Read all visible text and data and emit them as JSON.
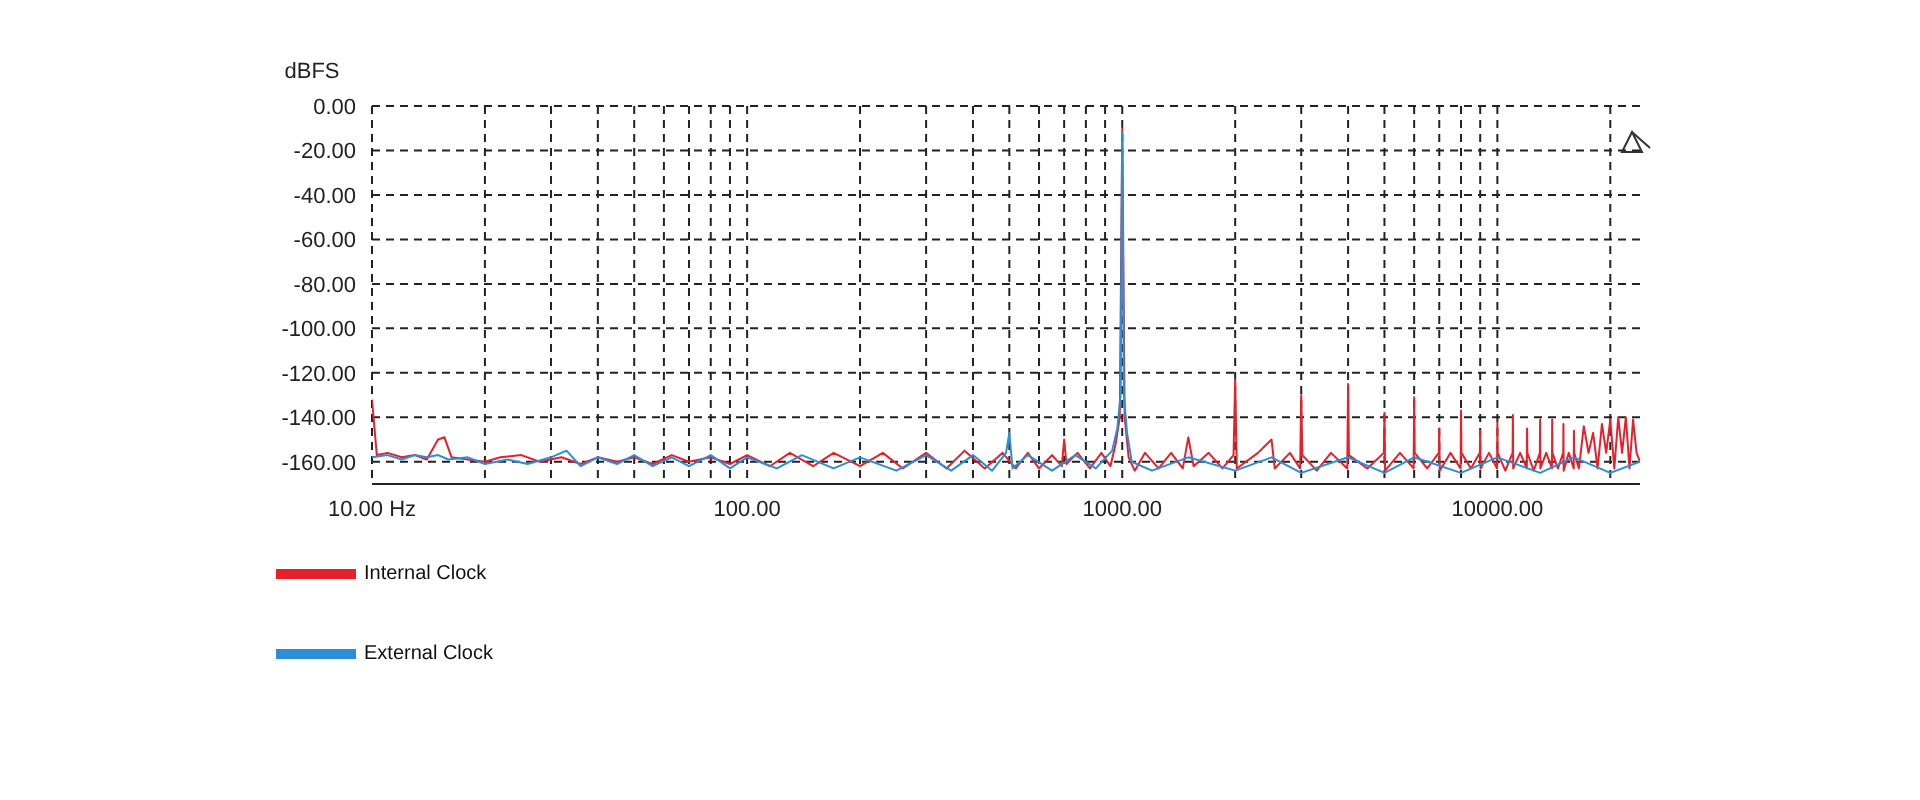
{
  "chart_data": {
    "type": "line",
    "ylabel": "dBFS",
    "log": "x",
    "grid": true,
    "line_style": "solid",
    "marker": "none",
    "legend": "bottom left",
    "xlim": [
      10,
      24000
    ],
    "xticks": [
      {
        "value": 10,
        "label": "10.00 Hz"
      },
      {
        "value": 20,
        "label": null
      },
      {
        "value": 30,
        "label": null
      },
      {
        "value": 40,
        "label": null
      },
      {
        "value": 50,
        "label": null
      },
      {
        "value": 60,
        "label": null
      },
      {
        "value": 70,
        "label": null
      },
      {
        "value": 80,
        "label": null
      },
      {
        "value": 90,
        "label": null
      },
      {
        "value": 100,
        "label": "100.00"
      },
      {
        "value": 200,
        "label": null
      },
      {
        "value": 300,
        "label": null
      },
      {
        "value": 400,
        "label": null
      },
      {
        "value": 500,
        "label": null
      },
      {
        "value": 600,
        "label": null
      },
      {
        "value": 700,
        "label": null
      },
      {
        "value": 800,
        "label": null
      },
      {
        "value": 900,
        "label": null
      },
      {
        "value": 1000,
        "label": "1000.00"
      },
      {
        "value": 2000,
        "label": null
      },
      {
        "value": 3000,
        "label": null
      },
      {
        "value": 4000,
        "label": null
      },
      {
        "value": 5000,
        "label": null
      },
      {
        "value": 6000,
        "label": null
      },
      {
        "value": 7000,
        "label": null
      },
      {
        "value": 8000,
        "label": null
      },
      {
        "value": 9000,
        "label": null
      },
      {
        "value": 10000,
        "label": "10000.00"
      },
      {
        "value": 20000,
        "label": null
      }
    ],
    "ylim": [
      -170,
      0
    ],
    "yticks": [
      {
        "value": 0,
        "label": "0.00"
      },
      {
        "value": -20,
        "label": "-20.00"
      },
      {
        "value": -40,
        "label": "-40.00"
      },
      {
        "value": -60,
        "label": "-60.00"
      },
      {
        "value": -80,
        "label": "-80.00"
      },
      {
        "value": -100,
        "label": "-100.00"
      },
      {
        "value": -120,
        "label": "-120.00"
      },
      {
        "value": -140,
        "label": "-140.00"
      },
      {
        "value": -160,
        "label": "-160.00"
      }
    ],
    "series": [
      {
        "name": "Internal Clock",
        "color": "#e8202a",
        "x": [
          10,
          10.3,
          11,
          12,
          13,
          14,
          15,
          15.6,
          16.3,
          18,
          20,
          22,
          25,
          28,
          32,
          36,
          40,
          45,
          50,
          56,
          63,
          70,
          80,
          90,
          100,
          115,
          130,
          150,
          170,
          200,
          230,
          260,
          300,
          340,
          380,
          430,
          480,
          520,
          560,
          600,
          650,
          690,
          700,
          710,
          760,
          820,
          880,
          930,
          960,
          985,
          1000,
          1015,
          1040,
          1080,
          1150,
          1250,
          1350,
          1450,
          1500,
          1550,
          1700,
          1850,
          1980,
          2000,
          2020,
          2300,
          2500,
          2550,
          2800,
          2980,
          3000,
          3020,
          3300,
          3600,
          3980,
          4000,
          4020,
          4500,
          4980,
          5000,
          5020,
          5500,
          5980,
          6000,
          6020,
          6500,
          6980,
          7000,
          7020,
          7500,
          7980,
          8000,
          8020,
          8500,
          8980,
          9000,
          9020,
          9500,
          9980,
          10000,
          10020,
          10500,
          10980,
          11000,
          11020,
          11500,
          11980,
          12000,
          12020,
          12500,
          12980,
          13000,
          13020,
          13500,
          13980,
          14000,
          14020,
          14500,
          14980,
          15000,
          15020,
          15500,
          15980,
          16000,
          16020,
          16500,
          17000,
          17500,
          18000,
          18500,
          19000,
          19500,
          20000,
          20500,
          21000,
          21500,
          22000,
          22500,
          23000,
          23500,
          24000
        ],
        "values": [
          -132,
          -157,
          -156,
          -158,
          -157,
          -159,
          -150,
          -149,
          -158,
          -159,
          -160,
          -158,
          -157,
          -160,
          -158,
          -161,
          -158,
          -160,
          -158,
          -161,
          -157,
          -160,
          -158,
          -161,
          -157,
          -162,
          -156,
          -162,
          -156,
          -162,
          -156,
          -163,
          -156,
          -163,
          -155,
          -163,
          -156,
          -163,
          -156,
          -163,
          -157,
          -162,
          -150,
          -161,
          -156,
          -163,
          -156,
          -162,
          -152,
          -140,
          -10,
          -140,
          -158,
          -164,
          -156,
          -163,
          -156,
          -163,
          -149,
          -162,
          -156,
          -163,
          -157,
          -123,
          -163,
          -156,
          -150,
          -163,
          -156,
          -163,
          -130,
          -157,
          -164,
          -156,
          -163,
          -125,
          -157,
          -163,
          -156,
          -138,
          -164,
          -156,
          -163,
          -131,
          -156,
          -163,
          -156,
          -145,
          -164,
          -156,
          -163,
          -137,
          -156,
          -163,
          -156,
          -146,
          -163,
          -156,
          -163,
          -142,
          -156,
          -164,
          -156,
          -139,
          -163,
          -156,
          -163,
          -145,
          -156,
          -164,
          -156,
          -141,
          -163,
          -156,
          -163,
          -141,
          -156,
          -163,
          -156,
          -143,
          -164,
          -156,
          -163,
          -146,
          -156,
          -163,
          -144,
          -156,
          -147,
          -163,
          -143,
          -156,
          -141,
          -163,
          -140,
          -156,
          -140,
          -163,
          -141,
          -156,
          -160
        ]
      },
      {
        "name": "External Clock",
        "color": "#2a8fd8",
        "x": [
          10,
          11,
          12,
          13,
          14,
          15,
          16,
          18,
          20,
          23,
          26,
          30,
          33,
          36,
          40,
          45,
          50,
          56,
          63,
          70,
          80,
          90,
          100,
          120,
          140,
          170,
          200,
          250,
          300,
          350,
          400,
          450,
          490,
          500,
          510,
          560,
          650,
          750,
          850,
          940,
          970,
          990,
          1000,
          1010,
          1030,
          1060,
          1200,
          1500,
          2000,
          2500,
          3000,
          4000,
          5000,
          6000,
          8000,
          10000,
          13000,
          16000,
          20000,
          24000
        ],
        "values": [
          -158,
          -157,
          -159,
          -157,
          -158,
          -157,
          -159,
          -158,
          -161,
          -159,
          -161,
          -158,
          -155,
          -162,
          -158,
          -161,
          -157,
          -162,
          -158,
          -162,
          -157,
          -163,
          -158,
          -163,
          -157,
          -163,
          -158,
          -164,
          -157,
          -164,
          -157,
          -164,
          -156,
          -147,
          -163,
          -157,
          -164,
          -157,
          -163,
          -155,
          -145,
          -130,
          -12,
          -130,
          -147,
          -160,
          -164,
          -158,
          -164,
          -158,
          -165,
          -158,
          -165,
          -158,
          -165,
          -158,
          -165,
          -158,
          -165,
          -160
        ]
      }
    ]
  }
}
